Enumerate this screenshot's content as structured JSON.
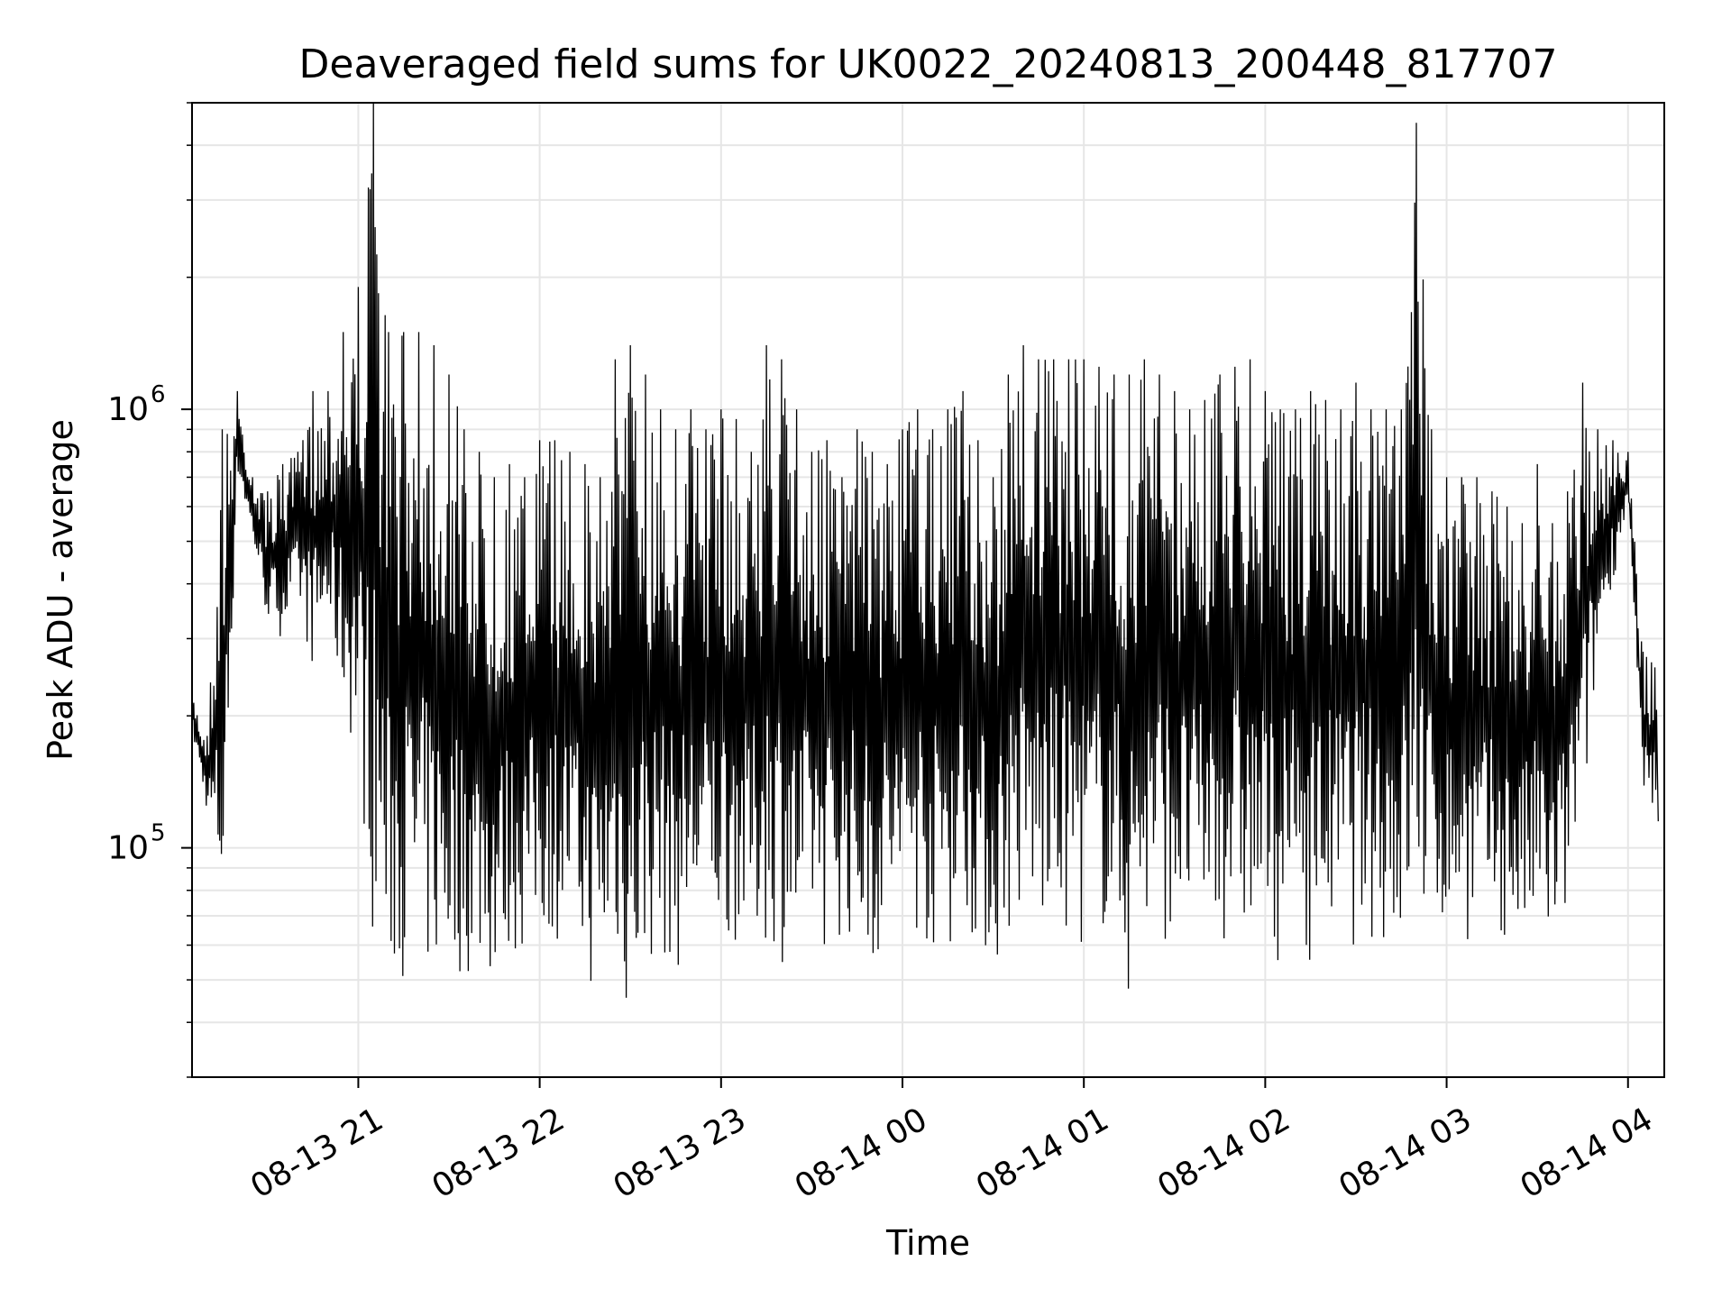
{
  "chart_data": {
    "type": "line",
    "title": "Deaveraged field sums for UK0022_20240813_200448_817707",
    "xlabel": "Time",
    "ylabel": "Peak ADU - average",
    "y_scale": "log",
    "ylim": [
      30000,
      5000000
    ],
    "xlim": [
      "2024-08-13T20:05",
      "2024-08-14T04:12"
    ],
    "grid": true,
    "legend": "none",
    "line_color": "#000000",
    "x_ticks": [
      {
        "value": "2024-08-13T21:00",
        "label": "08-13 21"
      },
      {
        "value": "2024-08-13T22:00",
        "label": "08-13 22"
      },
      {
        "value": "2024-08-13T23:00",
        "label": "08-13 23"
      },
      {
        "value": "2024-08-14T00:00",
        "label": "08-14 00"
      },
      {
        "value": "2024-08-14T01:00",
        "label": "08-14 01"
      },
      {
        "value": "2024-08-14T02:00",
        "label": "08-14 02"
      },
      {
        "value": "2024-08-14T03:00",
        "label": "08-14 03"
      },
      {
        "value": "2024-08-14T04:00",
        "label": "08-14 04"
      }
    ],
    "y_ticks": [
      {
        "value": 100000,
        "base": "10",
        "exp": "5"
      },
      {
        "value": 1000000,
        "base": "10",
        "exp": "6"
      }
    ],
    "series": [
      {
        "x": [
          "2024-08-13T20:05",
          "2024-08-13T20:10",
          "2024-08-13T20:15",
          "2024-08-13T20:20",
          "2024-08-13T20:25",
          "2024-08-13T20:30",
          "2024-08-13T20:35",
          "2024-08-13T20:40",
          "2024-08-13T20:45",
          "2024-08-13T20:50",
          "2024-08-13T20:55",
          "2024-08-13T21:00",
          "2024-08-13T21:05",
          "2024-08-13T21:10",
          "2024-08-13T21:15",
          "2024-08-13T21:20",
          "2024-08-13T21:25",
          "2024-08-13T21:30",
          "2024-08-13T21:35",
          "2024-08-13T21:40",
          "2024-08-13T21:45",
          "2024-08-13T21:50",
          "2024-08-13T21:55",
          "2024-08-13T22:00",
          "2024-08-13T22:05",
          "2024-08-13T22:10",
          "2024-08-13T22:15",
          "2024-08-13T22:20",
          "2024-08-13T22:25",
          "2024-08-13T22:30",
          "2024-08-13T22:35",
          "2024-08-13T22:40",
          "2024-08-13T22:45",
          "2024-08-13T22:50",
          "2024-08-13T22:55",
          "2024-08-13T23:00",
          "2024-08-13T23:05",
          "2024-08-13T23:10",
          "2024-08-13T23:15",
          "2024-08-13T23:20",
          "2024-08-13T23:25",
          "2024-08-13T23:30",
          "2024-08-13T23:35",
          "2024-08-13T23:40",
          "2024-08-13T23:45",
          "2024-08-13T23:50",
          "2024-08-13T23:55",
          "2024-08-14T00:00",
          "2024-08-14T00:05",
          "2024-08-14T00:10",
          "2024-08-14T00:15",
          "2024-08-14T00:20",
          "2024-08-14T00:25",
          "2024-08-14T00:30",
          "2024-08-14T00:35",
          "2024-08-14T00:40",
          "2024-08-14T00:45",
          "2024-08-14T00:50",
          "2024-08-14T00:55",
          "2024-08-14T01:00",
          "2024-08-14T01:05",
          "2024-08-14T01:10",
          "2024-08-14T01:15",
          "2024-08-14T01:20",
          "2024-08-14T01:25",
          "2024-08-14T01:30",
          "2024-08-14T01:35",
          "2024-08-14T01:40",
          "2024-08-14T01:45",
          "2024-08-14T01:50",
          "2024-08-14T01:55",
          "2024-08-14T02:00",
          "2024-08-14T02:05",
          "2024-08-14T02:10",
          "2024-08-14T02:15",
          "2024-08-14T02:20",
          "2024-08-14T02:25",
          "2024-08-14T02:30",
          "2024-08-14T02:35",
          "2024-08-14T02:40",
          "2024-08-14T02:45",
          "2024-08-14T02:50",
          "2024-08-14T02:55",
          "2024-08-14T03:00",
          "2024-08-14T03:05",
          "2024-08-14T03:10",
          "2024-08-14T03:15",
          "2024-08-14T03:20",
          "2024-08-14T03:25",
          "2024-08-14T03:30",
          "2024-08-14T03:35",
          "2024-08-14T03:40",
          "2024-08-14T03:45",
          "2024-08-14T03:50",
          "2024-08-14T03:55",
          "2024-08-14T04:00",
          "2024-08-14T04:05",
          "2024-08-14T04:10"
        ],
        "high": [
          230000,
          180000,
          900000,
          1100000,
          700000,
          650000,
          750000,
          800000,
          1100000,
          1100000,
          1500000,
          1900000,
          5000000,
          1500000,
          1500000,
          1500000,
          1400000,
          1200000,
          900000,
          800000,
          700000,
          750000,
          700000,
          850000,
          850000,
          800000,
          750000,
          700000,
          1300000,
          1400000,
          1200000,
          1000000,
          900000,
          1000000,
          900000,
          1000000,
          950000,
          800000,
          1400000,
          1300000,
          1000000,
          800000,
          850000,
          700000,
          900000,
          800000,
          750000,
          900000,
          1000000,
          900000,
          1000000,
          1100000,
          850000,
          700000,
          1200000,
          1400000,
          1300000,
          1300000,
          1300000,
          1300000,
          1250000,
          1200000,
          1200000,
          1300000,
          1200000,
          1100000,
          1000000,
          1050000,
          1200000,
          1250000,
          1300000,
          1100000,
          1000000,
          1000000,
          1100000,
          1050000,
          1000000,
          1150000,
          1000000,
          1000000,
          1000000,
          4500000,
          900000,
          700000,
          700000,
          700000,
          650000,
          600000,
          550000,
          750000,
          550000,
          650000,
          1150000,
          900000,
          850000,
          800000,
          280000,
          270000
        ],
        "low": [
          180000,
          120000,
          60000,
          700000,
          500000,
          320000,
          300000,
          350000,
          250000,
          300000,
          200000,
          150000,
          60000,
          45000,
          50000,
          48000,
          47000,
          47000,
          50000,
          50000,
          47000,
          55000,
          55000,
          60000,
          60000,
          60000,
          48000,
          45000,
          52000,
          35000,
          50000,
          55000,
          50000,
          55000,
          60000,
          58000,
          60000,
          55000,
          60000,
          55000,
          48000,
          60000,
          58000,
          62000,
          55000,
          50000,
          62000,
          58000,
          62000,
          55000,
          58000,
          62000,
          60000,
          48000,
          60000,
          62000,
          60000,
          58000,
          60000,
          58000,
          62000,
          60000,
          42000,
          55000,
          62000,
          60000,
          58000,
          60000,
          58000,
          62000,
          55000,
          55000,
          55000,
          58000,
          55000,
          58000,
          60000,
          58000,
          60000,
          58000,
          55000,
          60000,
          60000,
          62000,
          60000,
          60000,
          62000,
          58000,
          55000,
          58000,
          52000,
          65000,
          110000,
          250000,
          400000,
          600000,
          120000,
          115000
        ]
      }
    ]
  }
}
